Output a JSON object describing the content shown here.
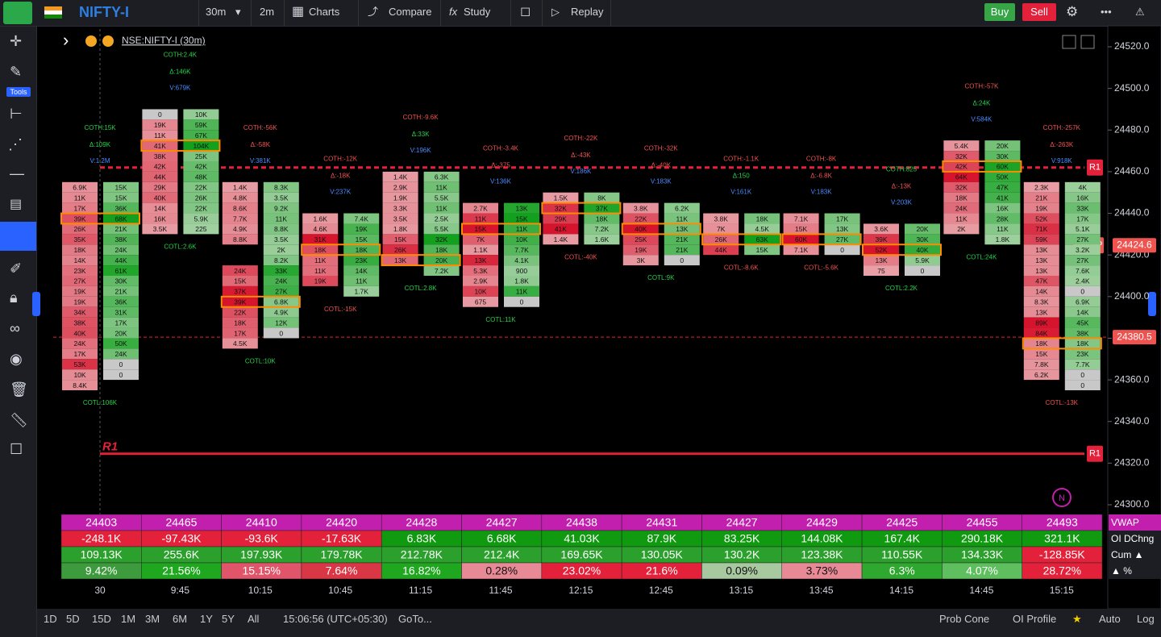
{
  "toolbar": {
    "symbol": "NIFTY-I",
    "interval": "30m",
    "sub_interval": "2m",
    "charts": "Charts",
    "compare": "Compare",
    "study": "Study",
    "replay": "Replay",
    "buy": "Buy",
    "sell": "Sell"
  },
  "sidebar": {
    "tools": "Tools"
  },
  "chart": {
    "legend": "NSE:NIFTY-I (30m)",
    "price_ticks": [
      {
        "value": 24520,
        "label": "24520.0"
      },
      {
        "value": 24500,
        "label": "24500.0"
      },
      {
        "value": 24480,
        "label": "24480.0"
      },
      {
        "value": 24460,
        "label": "24460.0"
      },
      {
        "value": 24440,
        "label": "24440.0"
      },
      {
        "value": 24420,
        "label": "24420.0"
      },
      {
        "value": 24400,
        "label": "24400.0"
      },
      {
        "value": 24380,
        "label": "24380.0"
      },
      {
        "value": 24360,
        "label": "24360.0"
      },
      {
        "value": 24340,
        "label": "24340.0"
      },
      {
        "value": 24320,
        "label": "24320.0"
      },
      {
        "value": 24300,
        "label": "24300.0"
      }
    ],
    "price_range": [
      24300,
      24520
    ],
    "levels": [
      {
        "label": "R1",
        "price": 24462
      },
      {
        "label": "R1",
        "price": 24324.5
      }
    ],
    "r1_left_label": "R1",
    "vwap_tag": "VWAP",
    "price_tags": [
      {
        "value": 24424.6,
        "label": "24424.6"
      },
      {
        "value": 24380.5,
        "label": "24380.5"
      }
    ],
    "candles": [
      {
        "time": "30",
        "top": 24452.5,
        "poc": 3,
        "coth": "COTH:15K",
        "delta": "Δ:109K",
        "vol": "V:1.2M",
        "cotl": "COTL:106K",
        "bid": [
          "6.9K",
          "11K",
          "17K",
          "39K",
          "26K",
          "35K",
          "18K",
          "14K",
          "23K",
          "27K",
          "19K",
          "19K",
          "34K",
          "38K",
          "40K",
          "24K",
          "17K",
          "53K",
          "10K",
          "8.4K"
        ],
        "ask": [
          "15K",
          "15K",
          "36K",
          "68K",
          "21K",
          "38K",
          "24K",
          "44K",
          "61K",
          "30K",
          "21K",
          "36K",
          "31K",
          "17K",
          "20K",
          "50K",
          "24K",
          "0",
          "0"
        ]
      },
      {
        "time": "9:45",
        "top": 24487.5,
        "poc": 3,
        "coth": "COTH:2.4K",
        "delta": "Δ:146K",
        "vol": "V:679K",
        "cotl": "COTL:2.6K",
        "bid": [
          "0",
          "19K",
          "11K",
          "41K",
          "38K",
          "42K",
          "44K",
          "29K",
          "40K",
          "14K",
          "16K",
          "3.5K"
        ],
        "ask": [
          "10K",
          "59K",
          "67K",
          "104K",
          "25K",
          "42K",
          "48K",
          "22K",
          "26K",
          "22K",
          "5.9K",
          "225"
        ]
      },
      {
        "time": "10:15",
        "top": 24452.5,
        "poc": 11,
        "coth": "COTH:-56K",
        "delta": "Δ:-58K",
        "vol": "V:381K",
        "cotl": "COTL:10K",
        "bid": [
          "1.4K",
          "4.8K",
          "8.6K",
          "7.7K",
          "4.9K",
          "8.8K",
          null,
          null,
          "24K",
          "15K",
          "37K",
          "39K",
          "22K",
          "18K",
          "17K",
          "4.5K"
        ],
        "ask": [
          "8.3K",
          "3.5K",
          "9.2K",
          "11K",
          "8.8K",
          "3.5K",
          "2K",
          "8.2K",
          "33K",
          "24K",
          "27K",
          "6.8K",
          "4.9K",
          "12K",
          "0"
        ]
      },
      {
        "time": "10:45",
        "top": 24437.5,
        "poc": 3,
        "coth": "COTH:-12K",
        "delta": "Δ:-18K",
        "vol": "V:237K",
        "cotl": "COTL:-15K",
        "bid": [
          "1.6K",
          "4.6K",
          "31K",
          "18K",
          "11K",
          "11K",
          "19K"
        ],
        "ask": [
          "7.4K",
          "19K",
          "15K",
          "18K",
          "23K",
          "14K",
          "11K",
          "1.7K"
        ]
      },
      {
        "time": "11:15",
        "top": 24457.5,
        "poc": 8,
        "coth": "COTH:-9.6K",
        "delta": "Δ:33K",
        "vol": "V:196K",
        "cotl": "COTL:2.8K",
        "bid": [
          "1.4K",
          "2.9K",
          "1.9K",
          "3.3K",
          "3.5K",
          "1.8K",
          "15K",
          "26K",
          "13K"
        ],
        "ask": [
          "6.3K",
          "11K",
          "5.5K",
          "11K",
          "2.5K",
          "5.5K",
          "32K",
          "18K",
          "20K",
          "7.2K"
        ]
      },
      {
        "time": "11:45",
        "top": 24442.5,
        "poc": 2,
        "coth": "COTH:-3.4K",
        "delta": "Δ:-375",
        "vol": "V:136K",
        "cotl": "COTL:11K",
        "bid": [
          "2.7K",
          "11K",
          "15K",
          "7K",
          "1.1K",
          "13K",
          "5.3K",
          "2.9K",
          "10K",
          "675"
        ],
        "ask": [
          "13K",
          "15K",
          "11K",
          "10K",
          "7.7K",
          "4.1K",
          "900",
          "1.8K",
          "11K",
          "0"
        ]
      },
      {
        "time": "12:15",
        "top": 24447.5,
        "poc": 1,
        "coth": "COTH:-22K",
        "delta": "Δ:-43K",
        "vol": "V:186K",
        "cotl": "COTL:-40K",
        "bid": [
          "1.5K",
          "32K",
          "29K",
          "41K",
          "1.4K"
        ],
        "ask": [
          "8K",
          "37K",
          "18K",
          "7.2K",
          "1.6K"
        ]
      },
      {
        "time": "12:45",
        "top": 24442.5,
        "poc": 2,
        "coth": "COTH:-32K",
        "delta": "Δ:-40K",
        "vol": "V:183K",
        "cotl": "COTL:9K",
        "bid": [
          "3.8K",
          "22K",
          "40K",
          "25K",
          "19K",
          "3K"
        ],
        "ask": [
          "6.2K",
          "11K",
          "13K",
          "21K",
          "21K",
          "0"
        ]
      },
      {
        "time": "13:15",
        "top": 24437.5,
        "poc": 2,
        "coth": "COTH:-1.1K",
        "delta": "Δ:150",
        "vol": "V:161K",
        "cotl": "COTL:-8.6K",
        "bid": [
          "3.8K",
          "7K",
          "26K",
          "44K"
        ],
        "ask": [
          "18K",
          "4.5K",
          "63K",
          "15K"
        ]
      },
      {
        "time": "13:45",
        "top": 24437.5,
        "poc": 2,
        "coth": "COTH:-8K",
        "delta": "Δ:-6.8K",
        "vol": "V:183K",
        "cotl": "COTL:-5.6K",
        "bid": [
          "7.1K",
          "15K",
          "60K",
          "7.1K"
        ],
        "ask": [
          "17K",
          "13K",
          "27K",
          "0"
        ]
      },
      {
        "time": "14:15",
        "top": 24432.5,
        "poc": 2,
        "coth": "COTH:825",
        "delta": "Δ:-13K",
        "vol": "V:203K",
        "cotl": "COTL:2.2K",
        "bid": [
          "3.6K",
          "39K",
          "52K",
          "13K",
          "75"
        ],
        "ask": [
          "20K",
          "30K",
          "40K",
          "5.9K",
          "0"
        ]
      },
      {
        "time": "14:45",
        "top": 24472.5,
        "poc": 2,
        "coth": "COTH:-57K",
        "delta": "Δ:24K",
        "vol": "V:584K",
        "cotl": "COTL:24K",
        "bid": [
          "5.4K",
          "32K",
          "42K",
          "64K",
          "32K",
          "18K",
          "24K",
          "11K",
          "2K"
        ],
        "ask": [
          "20K",
          "30K",
          "60K",
          "50K",
          "47K",
          "41K",
          "16K",
          "28K",
          "11K",
          "1.8K"
        ]
      },
      {
        "time": "15:15",
        "top": 24452.5,
        "poc": 15,
        "coth": "COTH:-257K",
        "delta": "Δ:-263K",
        "vol": "V:918K",
        "cotl": "COTL:-13K",
        "bid": [
          "2.3K",
          "21K",
          "19K",
          "52K",
          "71K",
          "59K",
          "13K",
          "13K",
          "13K",
          "47K",
          "14K",
          "8.3K",
          "13K",
          "89K",
          "84K",
          "18K",
          "15K",
          "7.8K",
          "6.2K"
        ],
        "ask": [
          "4K",
          "16K",
          "33K",
          "17K",
          "5.1K",
          "27K",
          "3.2K",
          "27K",
          "7.6K",
          "2.4K",
          "0",
          "6.9K",
          "14K",
          "45K",
          "38K",
          "18K",
          "23K",
          "7.7K",
          "0",
          "0"
        ]
      }
    ]
  },
  "table": {
    "row_labels": [
      "VWAP",
      "OI DChng",
      "Cum ▲",
      "▲ %"
    ],
    "rows": [
      [
        24403,
        24465,
        24410,
        24420,
        24428,
        24427,
        24438,
        24431,
        24427,
        24429,
        24425,
        24455,
        24493
      ],
      [
        "-248.1K",
        "-97.43K",
        "-93.6K",
        "-17.63K",
        "6.83K",
        "6.68K",
        "41.03K",
        "87.9K",
        "83.25K",
        "144.08K",
        "167.4K",
        "290.18K",
        "321.1K"
      ],
      [
        "109.13K",
        "255.6K",
        "197.93K",
        "179.78K",
        "212.78K",
        "212.4K",
        "169.65K",
        "130.05K",
        "130.2K",
        "123.38K",
        "110.55K",
        "134.33K",
        "-128.85K"
      ],
      [
        "9.42%",
        "21.56%",
        "15.15%",
        "7.64%",
        "16.82%",
        "0.28%",
        "23.02%",
        "21.6%",
        "0.09%",
        "3.73%",
        "6.3%",
        "4.07%",
        "28.72%"
      ]
    ],
    "pct_colors": [
      "#3d9b3d",
      "#1fa81f",
      "#e0556a",
      "#d93646",
      "#1fa81f",
      "#e88a96",
      "#e3213a",
      "#e3213a",
      "#a8c8a0",
      "#e88a96",
      "#2ea82e",
      "#5fbf5f",
      "#e3213a"
    ]
  },
  "bottom_bar": {
    "ranges": [
      "1D",
      "5D",
      "15D",
      "1M",
      "3M",
      "6M",
      "1Y",
      "5Y",
      "All"
    ],
    "clock": "15:06:56 (UTC+05:30)",
    "goto": "GoTo...",
    "right": [
      "Prob Cone",
      "OI Profile",
      "Auto",
      "Log"
    ]
  }
}
